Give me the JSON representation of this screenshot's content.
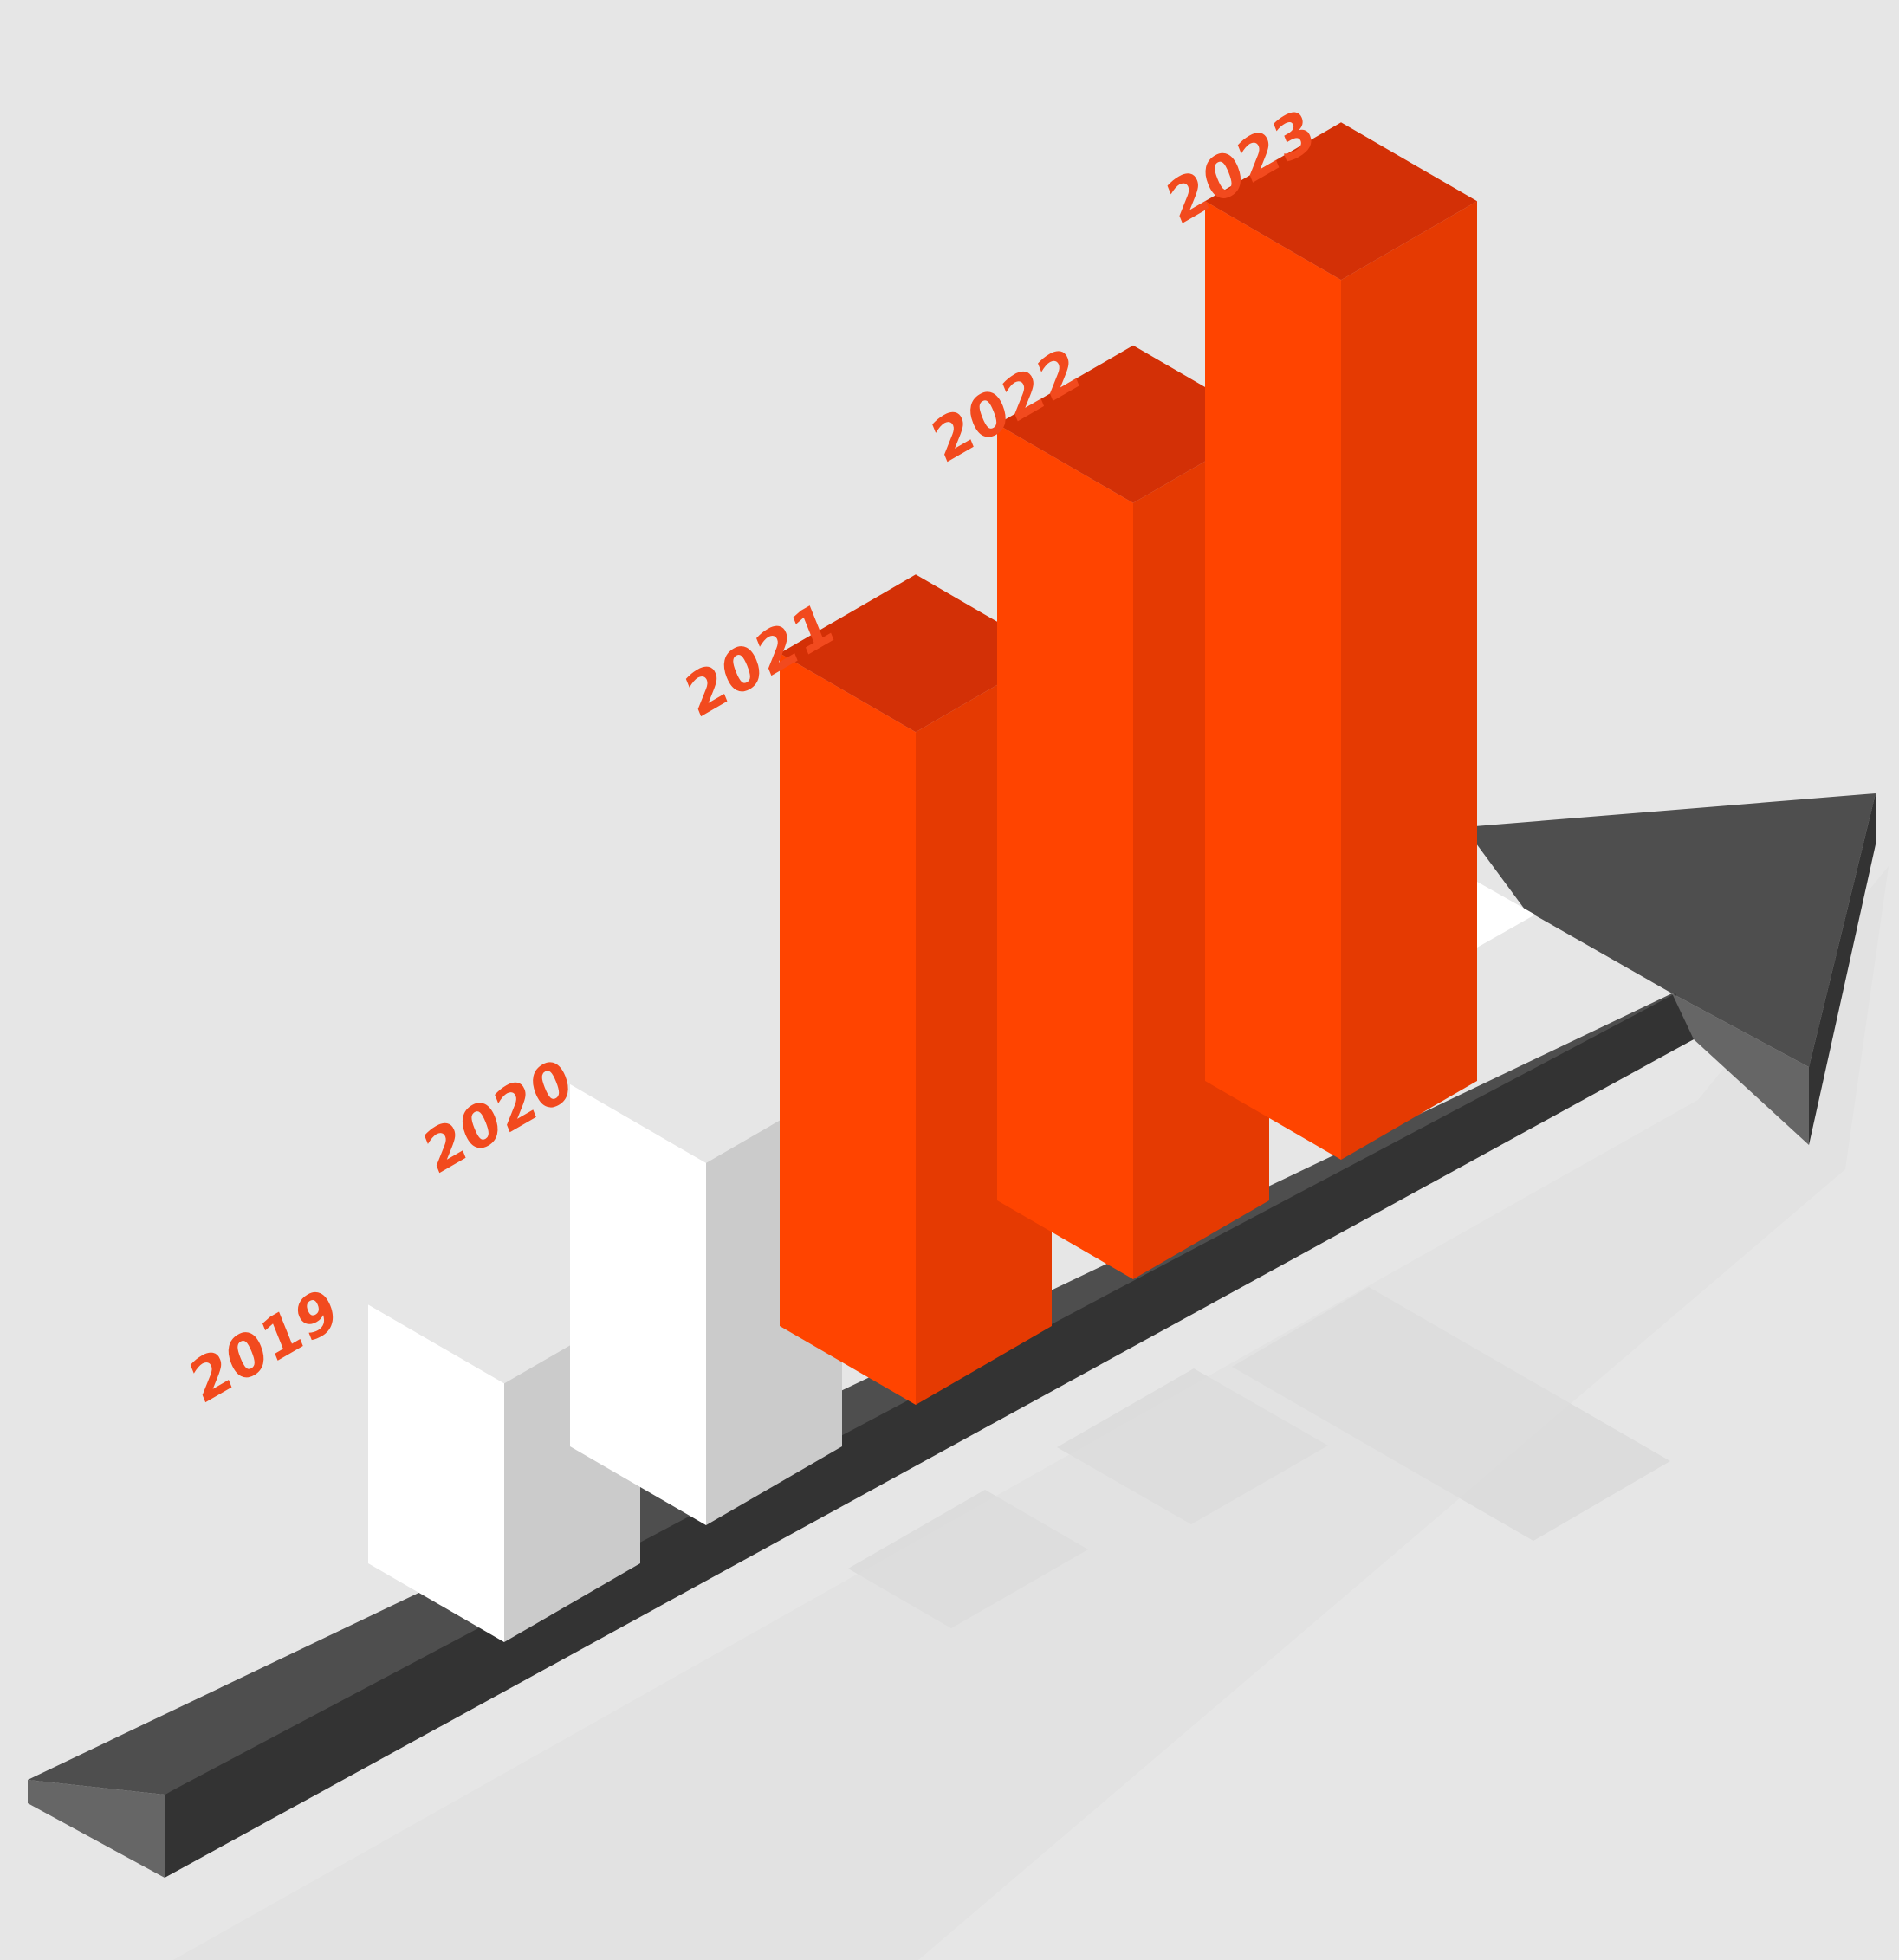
{
  "chart_data": {
    "type": "bar",
    "categories": [
      "2019",
      "2020",
      "2021",
      "2022",
      "2023"
    ],
    "values": [
      2.5,
      3.5,
      6.5,
      7.5,
      8.5
    ],
    "highlighted": [
      false,
      false,
      true,
      true,
      true
    ],
    "ylim": [
      0,
      10
    ],
    "grid": false,
    "legend": "none"
  },
  "colors": {
    "background": "#e6e6e6",
    "label": "#f24a1e",
    "highlight_front": "#ff4400",
    "highlight_side": "#e53a02",
    "highlight_top": "#d33006",
    "muted_front": "#ffffff",
    "muted_side": "#cbcbcb",
    "muted_top": "#e6e6e6",
    "arrow_top": "#4e4e4e",
    "arrow_front": "#333333",
    "arrow_end": "#666666"
  },
  "icons": {
    "axis": "trend-arrow-icon"
  }
}
